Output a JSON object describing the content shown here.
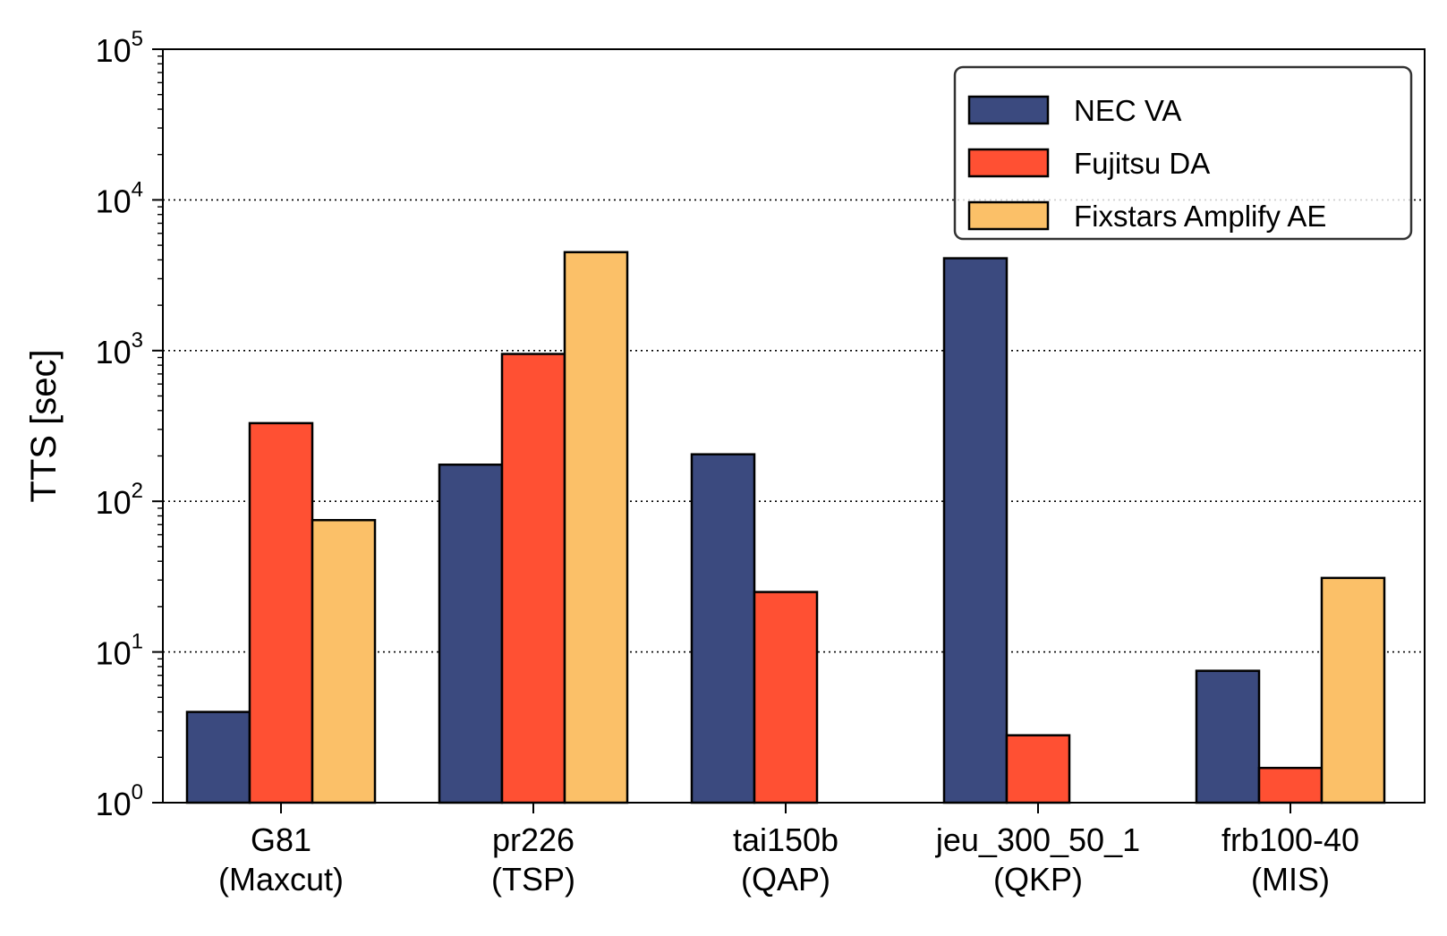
{
  "chart_data": {
    "type": "bar",
    "ylabel": "TTS [sec]",
    "xlabel": "",
    "title": "",
    "yscale": "log",
    "ylim": [
      1,
      100000
    ],
    "ytick_values": [
      1,
      10,
      100,
      1000,
      10000,
      100000
    ],
    "ytick_labels": [
      {
        "base": "10",
        "exp": "0"
      },
      {
        "base": "10",
        "exp": "1"
      },
      {
        "base": "10",
        "exp": "2"
      },
      {
        "base": "10",
        "exp": "3"
      },
      {
        "base": "10",
        "exp": "4"
      },
      {
        "base": "10",
        "exp": "5"
      }
    ],
    "categories": [
      {
        "line1": "G81",
        "line2": "(Maxcut)"
      },
      {
        "line1": "pr226",
        "line2": "(TSP)"
      },
      {
        "line1": "tai150b",
        "line2": "(QAP)"
      },
      {
        "line1": "jeu_300_50_1",
        "line2": "(QKP)"
      },
      {
        "line1": "frb100-40",
        "line2": "(MIS)"
      }
    ],
    "series": [
      {
        "name": "NEC VA",
        "color": "#3b4a7f",
        "values": [
          4,
          175,
          205,
          4100,
          7.5
        ]
      },
      {
        "name": "Fujitsu DA",
        "color": "#ff5033",
        "values": [
          330,
          950,
          25,
          2.8,
          1.7
        ]
      },
      {
        "name": "Fixstars Amplify AE",
        "color": "#fbc068",
        "values": [
          75,
          4500,
          null,
          null,
          31
        ]
      }
    ],
    "grid": {
      "axis": "y",
      "style": "dotted",
      "major_only": true
    },
    "legend_position": "top-right"
  }
}
